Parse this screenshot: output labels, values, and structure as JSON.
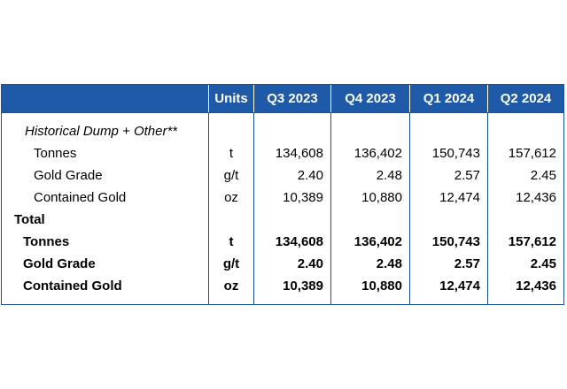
{
  "table": {
    "headers": [
      "",
      "Units",
      "Q3 2023",
      "Q4 2023",
      "Q1 2024",
      "Q2 2024"
    ],
    "section_label": "Historical Dump + Other**",
    "section_rows": [
      {
        "label": "Tonnes",
        "unit": "t",
        "values": [
          "134,608",
          "136,402",
          "150,743",
          "157,612"
        ]
      },
      {
        "label": "Gold Grade",
        "unit": "g/t",
        "values": [
          "2.40",
          "2.48",
          "2.57",
          "2.45"
        ]
      },
      {
        "label": "Contained Gold",
        "unit": "oz",
        "values": [
          "10,389",
          "10,880",
          "12,474",
          "12,436"
        ]
      }
    ],
    "total_label": "Total",
    "total_rows": [
      {
        "label": "Tonnes",
        "unit": "t",
        "values": [
          "134,608",
          "136,402",
          "150,743",
          "157,612"
        ]
      },
      {
        "label": "Gold Grade",
        "unit": "g/t",
        "values": [
          "2.40",
          "2.48",
          "2.57",
          "2.45"
        ]
      },
      {
        "label": "Contained Gold",
        "unit": "oz",
        "values": [
          "10,389",
          "10,880",
          "12,474",
          "12,436"
        ]
      }
    ]
  }
}
